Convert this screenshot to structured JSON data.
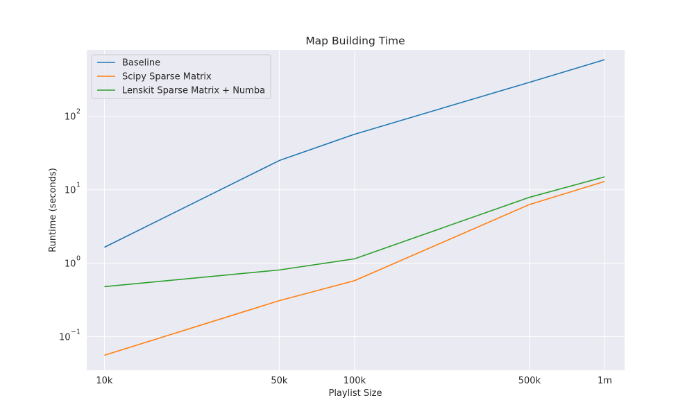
{
  "chart_data": {
    "type": "line",
    "title": "Map Building Time",
    "xlabel": "Playlist Size",
    "ylabel": "Runtime (seconds)",
    "x_scale": "log",
    "y_scale": "log",
    "x": [
      10000,
      50000,
      100000,
      500000,
      1000000
    ],
    "x_tick_labels": [
      "10k",
      "50k",
      "100k",
      "500k",
      "1m"
    ],
    "y_ticks": [
      {
        "base": "10",
        "exp": "−1",
        "value": 0.1
      },
      {
        "base": "10",
        "exp": "0",
        "value": 1
      },
      {
        "base": "10",
        "exp": "1",
        "value": 10
      },
      {
        "base": "10",
        "exp": "2",
        "value": 100
      }
    ],
    "xlim": [
      8500,
      1200000
    ],
    "ylim": [
      0.035,
      800
    ],
    "grid": true,
    "legend_position": "top-left",
    "series": [
      {
        "name": "Baseline",
        "color": "#1f77b4",
        "values": [
          1.65,
          25,
          57,
          290,
          590
        ]
      },
      {
        "name": "Scipy Sparse Matrix",
        "color": "#ff7f0e",
        "values": [
          0.056,
          0.31,
          0.58,
          6.3,
          13
        ]
      },
      {
        "name": "Lenskit Sparse Matrix + Numba",
        "color": "#2ca02c",
        "values": [
          0.48,
          0.81,
          1.15,
          7.9,
          15
        ]
      }
    ]
  }
}
